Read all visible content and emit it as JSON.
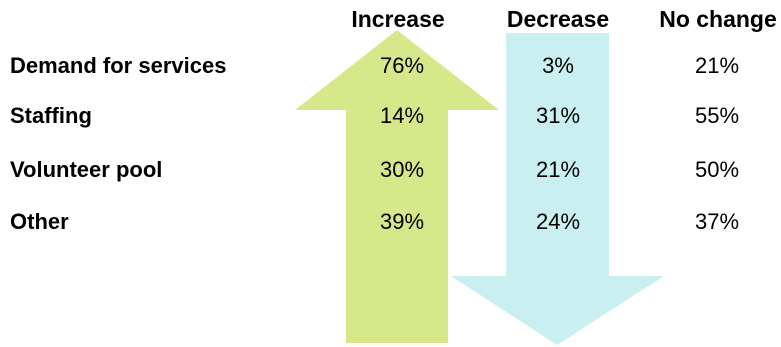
{
  "chart_data": {
    "type": "table",
    "columns": [
      "Increase",
      "Decrease",
      "No change"
    ],
    "rows": [
      {
        "label": "Demand for services",
        "values": [
          "76%",
          "3%",
          "21%"
        ]
      },
      {
        "label": "Staffing",
        "values": [
          "14%",
          "31%",
          "55%"
        ]
      },
      {
        "label": "Volunteer pool",
        "values": [
          "30%",
          "21%",
          "50%"
        ]
      },
      {
        "label": "Other",
        "values": [
          "39%",
          "24%",
          "37%"
        ]
      }
    ],
    "colors": {
      "increase_arrow": "#d6e88a",
      "decrease_arrow": "#c9eff0"
    }
  }
}
